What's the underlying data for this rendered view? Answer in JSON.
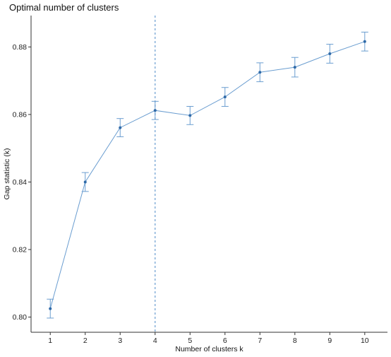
{
  "chart_data": {
    "type": "line",
    "title": "Optimal number of clusters",
    "xlabel": "Number of clusters k",
    "ylabel": "Gap statistic (k)",
    "x": [
      1,
      2,
      3,
      4,
      5,
      6,
      7,
      8,
      9,
      10
    ],
    "series": [
      {
        "values": [
          0.8025,
          0.84,
          0.8561,
          0.8612,
          0.8597,
          0.8652,
          0.8725,
          0.874,
          0.878,
          0.8816
        ],
        "error": [
          0.0028,
          0.0028,
          0.0027,
          0.0027,
          0.0027,
          0.0028,
          0.0028,
          0.0029,
          0.0028,
          0.0028
        ]
      }
    ],
    "x_ticks": [
      "1",
      "2",
      "3",
      "4",
      "5",
      "6",
      "7",
      "8",
      "9",
      "10"
    ],
    "y_ticks": [
      "0.80",
      "0.82",
      "0.84",
      "0.86",
      "0.88"
    ],
    "y_tick_values": [
      0.8,
      0.82,
      0.84,
      0.86,
      0.88
    ],
    "xlim": [
      0.45,
      10.65
    ],
    "ylim": [
      0.7955,
      0.8893
    ],
    "optimal_k": 4,
    "grid": false,
    "colors": {
      "series": "#6a9dd0",
      "point": "#2f6aa8",
      "error_bar": "#6a9dd0",
      "vline": "#6a9dd0",
      "axis": "#333333"
    }
  }
}
